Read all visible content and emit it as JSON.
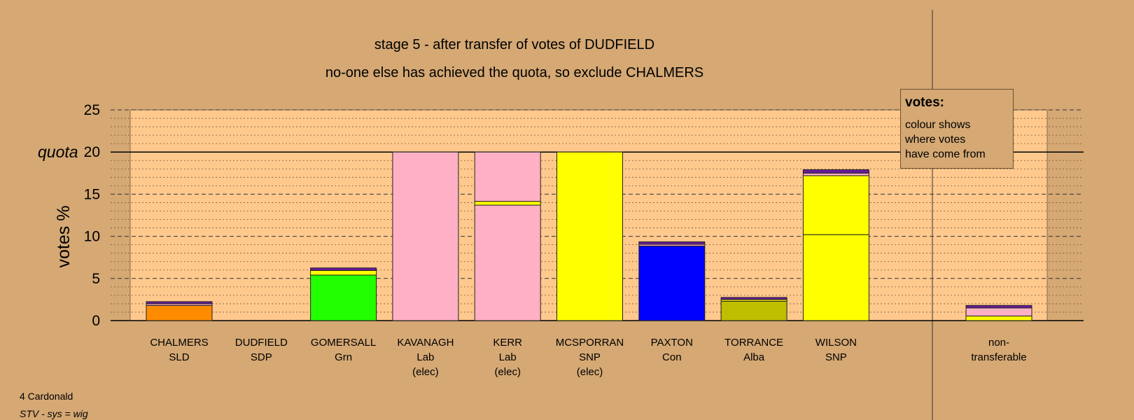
{
  "title": "stage 5 - after transfer of votes of DUDFIELD",
  "subtitle": "no-one else has achieved the quota, so exclude CHALMERS",
  "legend": {
    "title": "votes:",
    "lines": [
      "colour shows",
      "where votes",
      "have come from"
    ]
  },
  "footer": {
    "ward": "4 Cardonald",
    "system": "STV - sys = wig"
  },
  "colors": {
    "background": "#d5a874",
    "plot_bg": "#ffc98e",
    "SLD": "#ff8c00",
    "Grn": "#22ff00",
    "Lab": "#ffb0c4",
    "SNP": "#ffff00",
    "Con": "#0000ff",
    "Alba": "#bfbf00",
    "SDP": "#6a1b9a"
  },
  "chart_data": {
    "type": "bar",
    "stacked": true,
    "ylabel": "votes %",
    "ylim": [
      0,
      25
    ],
    "yticks": [
      0,
      5,
      10,
      15,
      20,
      25
    ],
    "quota": 20,
    "quota_label": "quota",
    "grid": true,
    "legend_position": "top-right",
    "categories": [
      {
        "name": "CHALMERS",
        "party": "SLD",
        "status": ""
      },
      {
        "name": "DUDFIELD",
        "party": "SDP",
        "status": ""
      },
      {
        "name": "GOMERSALL",
        "party": "Grn",
        "status": ""
      },
      {
        "name": "KAVANAGH",
        "party": "Lab",
        "status": "(elec)"
      },
      {
        "name": "KERR",
        "party": "Lab",
        "status": "(elec)"
      },
      {
        "name": "MCSPORRAN",
        "party": "SNP",
        "status": "(elec)"
      },
      {
        "name": "PAXTON",
        "party": "Con",
        "status": ""
      },
      {
        "name": "TORRANCE",
        "party": "Alba",
        "status": ""
      },
      {
        "name": "WILSON",
        "party": "SNP",
        "status": ""
      },
      {
        "name": "non-",
        "party": "transferable",
        "status": ""
      }
    ],
    "segments": [
      [
        {
          "source": "SLD",
          "value": 1.8
        },
        {
          "source": "Lab",
          "value": 0.2
        },
        {
          "source": "SDP",
          "value": 0.25
        }
      ],
      [],
      [
        {
          "source": "Grn",
          "value": 5.4
        },
        {
          "source": "SNP",
          "value": 0.55
        },
        {
          "source": "SDP",
          "value": 0.3
        }
      ],
      [
        {
          "source": "Lab",
          "value": 20.0
        }
      ],
      [
        {
          "source": "Lab",
          "value": 13.7
        },
        {
          "source": "SNP",
          "value": 0.45
        },
        {
          "source": "Lab",
          "value": 5.85
        }
      ],
      [
        {
          "source": "SNP",
          "value": 20.0
        }
      ],
      [
        {
          "source": "Con",
          "value": 8.85
        },
        {
          "source": "Lab",
          "value": 0.2
        },
        {
          "source": "SDP",
          "value": 0.3
        }
      ],
      [
        {
          "source": "Alba",
          "value": 2.3
        },
        {
          "source": "SNP",
          "value": 0.2
        },
        {
          "source": "SDP",
          "value": 0.25
        }
      ],
      [
        {
          "source": "SNP",
          "value": 10.2
        },
        {
          "source": "SNP",
          "value": 7.0
        },
        {
          "source": "Lab",
          "value": 0.3
        },
        {
          "source": "SDP",
          "value": 0.4
        }
      ],
      [
        {
          "source": "SNP",
          "value": 0.55
        },
        {
          "source": "Lab",
          "value": 0.95
        },
        {
          "source": "SDP",
          "value": 0.3
        }
      ]
    ]
  }
}
